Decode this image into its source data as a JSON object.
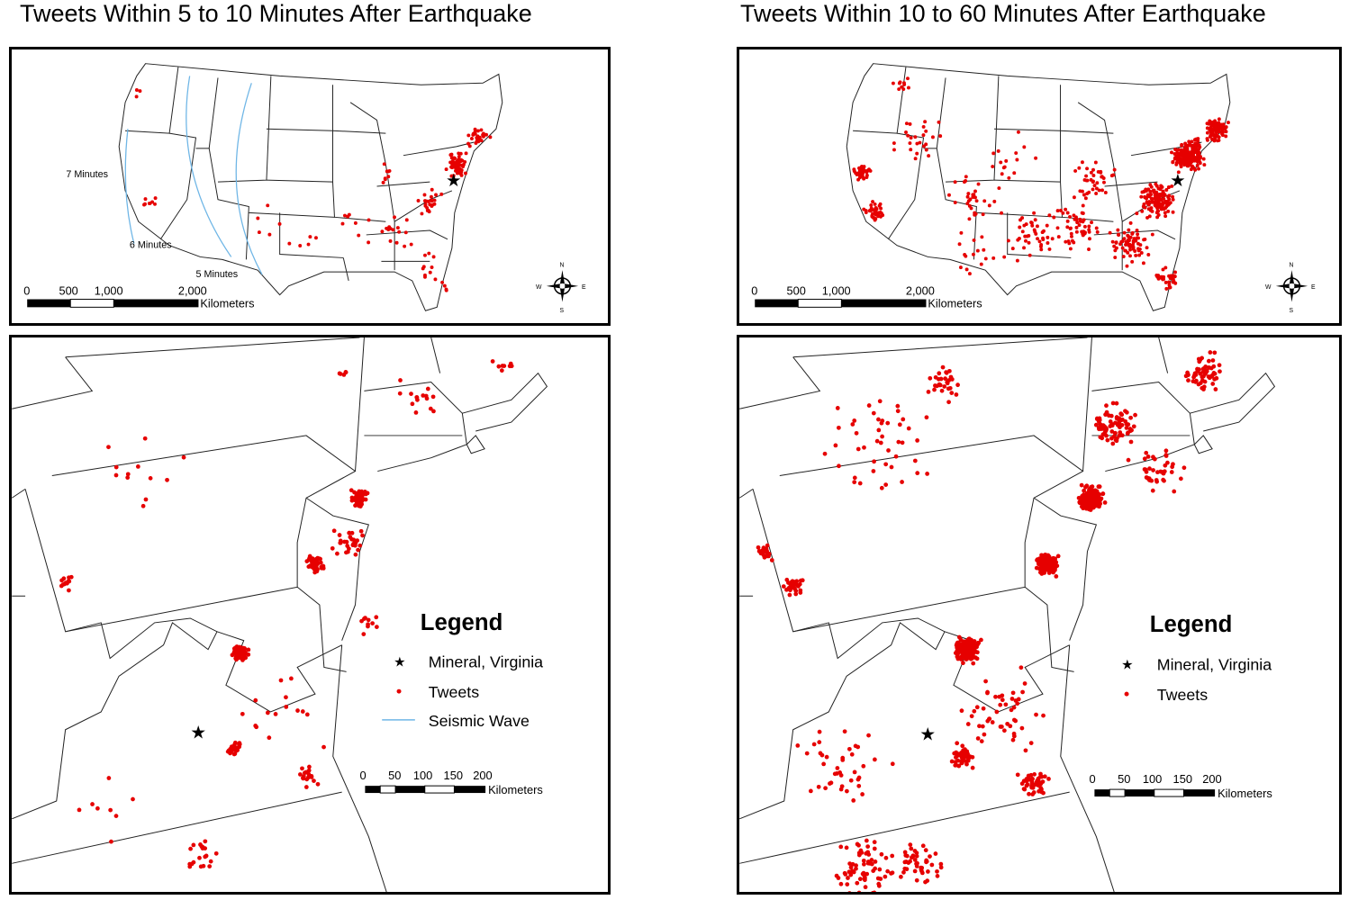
{
  "colors": {
    "tweet": "#e60000",
    "star": "#000000",
    "wave": "#6fb6e6",
    "boundary": "#222222"
  },
  "panels": {
    "left": {
      "title": "Tweets Within 5 to 10 Minutes After Earthquake"
    },
    "right": {
      "title": "Tweets Within 10 to 60 Minutes After Earthquake"
    }
  },
  "overview": {
    "wave_labels": [
      "7 Minutes",
      "6 Minutes",
      "5 Minutes"
    ],
    "scale_ticks": [
      "0",
      "500",
      "1,000",
      "2,000"
    ],
    "scale_unit": "Kilometers",
    "compass": {
      "n": "N",
      "s": "S",
      "e": "E",
      "w": "W"
    }
  },
  "detail": {
    "scale_ticks": [
      "0",
      "50",
      "100",
      "150",
      "200"
    ],
    "scale_unit": "Kilometers"
  },
  "legend": {
    "title": "Legend",
    "left_items": [
      {
        "symbol": "star",
        "label": "Mineral, Virginia"
      },
      {
        "symbol": "dot",
        "label": "Tweets"
      },
      {
        "symbol": "line",
        "label": "Seismic Wave"
      }
    ],
    "right_items": [
      {
        "symbol": "star",
        "label": "Mineral, Virginia"
      },
      {
        "symbol": "dot",
        "label": "Tweets"
      }
    ]
  }
}
